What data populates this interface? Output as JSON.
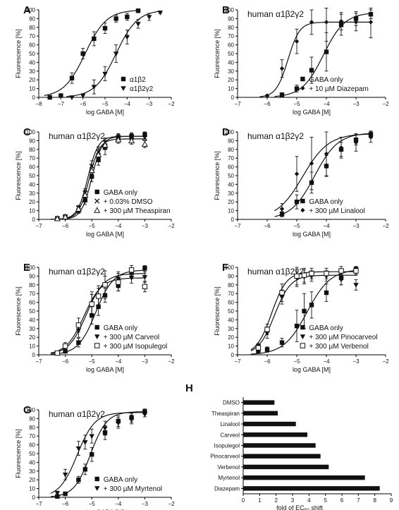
{
  "chart_data": [
    {
      "id": "A",
      "type": "scatter",
      "letter": "A",
      "title": "",
      "xlabel": "log GABA [M]",
      "ylabel": "Fluorescence [%]",
      "xlim": [
        -8,
        -2
      ],
      "ylim": [
        0,
        100
      ],
      "xticks": [
        -8,
        -7,
        -6,
        -5,
        -4,
        -3,
        -2
      ],
      "yticks": [
        0,
        10,
        20,
        30,
        40,
        50,
        60,
        70,
        80,
        90,
        100
      ],
      "legend_position": "bottom-right",
      "series": [
        {
          "name": "α1β2",
          "marker": "square",
          "logEC50": -5.9,
          "hill": 0.9,
          "top": 100,
          "x": [
            -7.5,
            -7,
            -6.5,
            -6,
            -5.5,
            -5,
            -4.5,
            -4,
            -3.5
          ],
          "y": [
            0,
            2,
            22,
            50,
            67,
            79,
            90,
            92,
            99
          ],
          "err": [
            1,
            2,
            6,
            6,
            8,
            6,
            4,
            4,
            1
          ]
        },
        {
          "name": "α1β2γ2",
          "marker": "triangle-down",
          "logEC50": -4.5,
          "hill": 0.9,
          "top": 100,
          "x": [
            -6.5,
            -6,
            -5.5,
            -5,
            -4.5,
            -4,
            -3.5,
            -3,
            -2.5
          ],
          "y": [
            0,
            2,
            12,
            27,
            50,
            69,
            84,
            92,
            97
          ],
          "err": [
            1,
            2,
            8,
            8,
            10,
            8,
            5,
            4,
            1
          ]
        }
      ]
    },
    {
      "id": "B",
      "type": "scatter",
      "letter": "B",
      "title": "human α1β2γ2",
      "xlabel": "log GABA [M]",
      "ylabel": "Fluorescence [%]",
      "xlim": [
        -7,
        -2
      ],
      "ylim": [
        0,
        100
      ],
      "xticks": [
        -7,
        -6,
        -5,
        -4,
        -3,
        -2
      ],
      "yticks": [
        0,
        10,
        20,
        30,
        40,
        50,
        60,
        70,
        80,
        90,
        100
      ],
      "legend_position": "bottom-right",
      "series": [
        {
          "name": "GABA only",
          "marker": "square",
          "logEC50": -4.1,
          "hill": 1.2,
          "top": 97,
          "x": [
            -5.5,
            -5,
            -4.5,
            -4,
            -3.5,
            -3,
            -2.5
          ],
          "y": [
            3,
            10,
            31,
            52,
            83,
            90,
            95
          ],
          "err": [
            2,
            4,
            15,
            22,
            12,
            8,
            5
          ]
        },
        {
          "name": "+ 10 µM Diazepam",
          "marker": "diamond",
          "logEC50": -5.3,
          "hill": 2.2,
          "top": 86,
          "x": [
            -6,
            -5.5,
            -5,
            -4.5,
            -4,
            -3.5,
            -3,
            -2.5
          ],
          "y": [
            2,
            33,
            64,
            86,
            86,
            87,
            86,
            86
          ],
          "err": [
            1,
            10,
            14,
            14,
            22,
            10,
            10,
            18
          ]
        }
      ]
    },
    {
      "id": "C",
      "type": "scatter",
      "letter": "C",
      "title": "human α1β2γ2",
      "xlabel": "log GABA [M]",
      "ylabel": "Fluorescence [%]",
      "xlim": [
        -7,
        -2
      ],
      "ylim": [
        0,
        100
      ],
      "xticks": [
        -7,
        -6,
        -5,
        -4,
        -3,
        -2
      ],
      "yticks": [
        0,
        10,
        20,
        30,
        40,
        50,
        60,
        70,
        80,
        90,
        100
      ],
      "legend_position": "bottom-right",
      "series": [
        {
          "name": "GABA only",
          "marker": "square",
          "logEC50": -5.0,
          "hill": 2.2,
          "top": 95,
          "x": [
            -6.3,
            -6,
            -5.5,
            -5.25,
            -5,
            -4.75,
            -4.5,
            -4,
            -3.5,
            -3
          ],
          "y": [
            1,
            3,
            10,
            22,
            49,
            68,
            82,
            94,
            95,
            97
          ],
          "err": [
            1,
            1,
            3,
            5,
            6,
            6,
            8,
            4,
            4,
            3
          ]
        },
        {
          "name": "+ 0.03% DMSO",
          "marker": "x",
          "logEC50": -5.15,
          "hill": 2.2,
          "top": 95,
          "x": [
            -6.3,
            -6,
            -5.5,
            -5.25,
            -5,
            -4.75,
            -4.5,
            -4,
            -3.5,
            -3
          ],
          "y": [
            1,
            3,
            13,
            30,
            61,
            77,
            88,
            93,
            94,
            93
          ],
          "err": [
            1,
            1,
            3,
            5,
            6,
            6,
            5,
            4,
            4,
            3
          ]
        },
        {
          "name": "+ 300 µM Theaspiran",
          "marker": "triangle-open",
          "logEC50": -5.1,
          "hill": 2.2,
          "top": 92,
          "x": [
            -6.3,
            -6,
            -5.5,
            -5.25,
            -5,
            -4.75,
            -4.5,
            -4,
            -3.5,
            -3
          ],
          "y": [
            1,
            3,
            12,
            28,
            56,
            74,
            85,
            91,
            90,
            86
          ],
          "err": [
            1,
            1,
            3,
            5,
            6,
            6,
            5,
            4,
            4,
            4
          ]
        }
      ]
    },
    {
      "id": "D",
      "type": "scatter",
      "letter": "D",
      "title": "human α1β2γ2",
      "xlabel": "log GABA [M]",
      "ylabel": "Fluorescence [%]",
      "xlim": [
        -7,
        -2
      ],
      "ylim": [
        0,
        100
      ],
      "xticks": [
        -7,
        -6,
        -5,
        -4,
        -3,
        -2
      ],
      "yticks": [
        0,
        10,
        20,
        30,
        40,
        50,
        60,
        70,
        80,
        90,
        100
      ],
      "legend_position": "bottom-right",
      "series": [
        {
          "name": "GABA only",
          "marker": "square",
          "logEC50": -4.4,
          "hill": 1.1,
          "top": 99,
          "x": [
            -5.5,
            -5,
            -4.5,
            -4,
            -3.5,
            -3,
            -2.5
          ],
          "y": [
            6,
            20,
            42,
            61,
            80,
            91,
            97
          ],
          "err": [
            3,
            8,
            12,
            12,
            8,
            6,
            4
          ]
        },
        {
          "name": "+ 300 µM Linalool",
          "marker": "diamond",
          "logEC50": -4.8,
          "hill": 1.0,
          "top": 98,
          "x": [
            -5.5,
            -5,
            -4.5,
            -4,
            -3.5,
            -3,
            -2.5
          ],
          "y": [
            12,
            52,
            64,
            75,
            82,
            88,
            94
          ],
          "err": [
            6,
            20,
            30,
            25,
            12,
            10,
            6
          ]
        }
      ]
    },
    {
      "id": "E",
      "type": "scatter",
      "letter": "E",
      "title": "human α1β2γ2",
      "xlabel": "log GABA [M]",
      "ylabel": "Fluorescence [%]",
      "xlim": [
        -7,
        -2
      ],
      "ylim": [
        0,
        100
      ],
      "xticks": [
        -7,
        -6,
        -5,
        -4,
        -3,
        -2
      ],
      "yticks": [
        0,
        10,
        20,
        30,
        40,
        50,
        60,
        70,
        80,
        90,
        100
      ],
      "legend_position": "bottom-right",
      "series": [
        {
          "name": "GABA only",
          "marker": "square",
          "logEC50": -4.85,
          "hill": 1.3,
          "top": 97,
          "x": [
            -6.3,
            -6,
            -5.5,
            -5,
            -4.75,
            -4.5,
            -4,
            -3.5,
            -3
          ],
          "y": [
            2,
            4,
            14,
            45,
            55,
            68,
            79,
            94,
            99
          ],
          "err": [
            1,
            2,
            5,
            10,
            10,
            8,
            6,
            5,
            4
          ]
        },
        {
          "name": "+ 300 µM Carveol",
          "marker": "triangle-down",
          "logEC50": -5.2,
          "hill": 1.3,
          "top": 93,
          "x": [
            -6.3,
            -6,
            -5.5,
            -5,
            -4.75,
            -4.5,
            -4,
            -3.5,
            -3
          ],
          "y": [
            2,
            8,
            28,
            57,
            66,
            80,
            87,
            88,
            89
          ],
          "err": [
            1,
            3,
            8,
            12,
            10,
            10,
            8,
            6,
            6
          ]
        },
        {
          "name": "+ 300 µM Isopulegol",
          "marker": "square-open",
          "logEC50": -5.3,
          "hill": 1.3,
          "top": 88,
          "x": [
            -6.3,
            -6,
            -5.5,
            -5,
            -4.75,
            -4.5,
            -4,
            -3.5,
            -3
          ],
          "y": [
            2,
            10,
            34,
            58,
            67,
            80,
            83,
            97,
            78
          ],
          "err": [
            1,
            4,
            8,
            14,
            12,
            16,
            10,
            6,
            6
          ]
        }
      ]
    },
    {
      "id": "F",
      "type": "scatter",
      "letter": "F",
      "title": "human α1β2γ2",
      "xlabel": "log GABA [M]",
      "ylabel": "Fluorescence [%]",
      "xlim": [
        -7,
        -2
      ],
      "ylim": [
        0,
        100
      ],
      "xticks": [
        -7,
        -6,
        -5,
        -4,
        -3,
        -2
      ],
      "yticks": [
        0,
        10,
        20,
        30,
        40,
        50,
        60,
        70,
        80,
        90,
        100
      ],
      "legend_position": "bottom-right",
      "series": [
        {
          "name": "GABA only",
          "marker": "square",
          "logEC50": -4.65,
          "hill": 1.1,
          "top": 98,
          "x": [
            -6.3,
            -6,
            -5.5,
            -5,
            -4.75,
            -4.5,
            -4,
            -3.5,
            -3
          ],
          "y": [
            4,
            6,
            14,
            33,
            50,
            57,
            71,
            88,
            98
          ],
          "err": [
            2,
            3,
            5,
            18,
            20,
            15,
            10,
            8,
            3
          ]
        },
        {
          "name": "+ 300 µM Pinocarveol",
          "marker": "triangle-down",
          "logEC50": -5.75,
          "hill": 1.6,
          "top": 91,
          "x": [
            -6.3,
            -6,
            -5.5,
            -5,
            -4.75,
            -4.5,
            -4,
            -3.5,
            -3
          ],
          "y": [
            10,
            25,
            66,
            88,
            89,
            90,
            90,
            86,
            80
          ],
          "err": [
            3,
            6,
            8,
            10,
            8,
            6,
            6,
            6,
            6
          ]
        },
        {
          "name": "+ 300 µM Verbenol",
          "marker": "square-open",
          "logEC50": -5.85,
          "hill": 1.7,
          "top": 95,
          "x": [
            -6.3,
            -6,
            -5.5,
            -5,
            -4.75,
            -4.5,
            -4,
            -3.5,
            -3
          ],
          "y": [
            8,
            29,
            71,
            90,
            91,
            93,
            93,
            96,
            96
          ],
          "err": [
            3,
            6,
            10,
            10,
            8,
            6,
            6,
            5,
            4
          ]
        }
      ]
    },
    {
      "id": "G",
      "type": "scatter",
      "letter": "G",
      "title": "human α1β2γ2",
      "xlabel": "log GABA [M]",
      "ylabel": "Fluorescence [%]",
      "xlim": [
        -7,
        -2
      ],
      "ylim": [
        0,
        100
      ],
      "xticks": [
        -7,
        -6,
        -5,
        -4,
        -3,
        -2
      ],
      "yticks": [
        0,
        10,
        20,
        30,
        40,
        50,
        60,
        70,
        80,
        90,
        100
      ],
      "legend_position": "bottom-right",
      "series": [
        {
          "name": "GABA only",
          "marker": "square",
          "logEC50": -5.05,
          "hill": 1.4,
          "top": 98,
          "x": [
            -6.3,
            -6,
            -5.5,
            -5.25,
            -5,
            -4.5,
            -4,
            -3.5,
            -3
          ],
          "y": [
            1,
            4,
            20,
            32,
            49,
            74,
            87,
            91,
            98
          ],
          "err": [
            1,
            2,
            4,
            6,
            8,
            8,
            6,
            5,
            3
          ]
        },
        {
          "name": "+ 300 µM Myrtenol",
          "marker": "triangle-down",
          "logEC50": -5.55,
          "hill": 1.3,
          "top": 97,
          "x": [
            -6.3,
            -6,
            -5.5,
            -5.25,
            -5,
            -4.5,
            -4,
            -3.5,
            -3
          ],
          "y": [
            5,
            26,
            56,
            63,
            70,
            79,
            85,
            89,
            95
          ],
          "err": [
            2,
            6,
            8,
            8,
            8,
            8,
            6,
            5,
            3
          ]
        }
      ]
    },
    {
      "id": "H",
      "type": "bar",
      "letter": "H",
      "orientation": "horizontal",
      "title": "",
      "xlabel": "fold of EC",
      "xlabel_sub": "50",
      "xlabel_after": " shift",
      "xlim": [
        0,
        9
      ],
      "xticks": [
        0,
        1,
        2,
        3,
        4,
        5,
        6,
        7,
        8,
        9
      ],
      "categories": [
        "DMSO",
        "Theaspiran",
        "Linalool",
        "Carveol",
        "Isopulegol",
        "Pinocarveol",
        "Verbenol",
        "Myrtenol",
        "Diazepam"
      ],
      "values": [
        1.9,
        2.1,
        3.2,
        3.9,
        4.4,
        4.7,
        5.2,
        7.4,
        8.3
      ]
    }
  ]
}
